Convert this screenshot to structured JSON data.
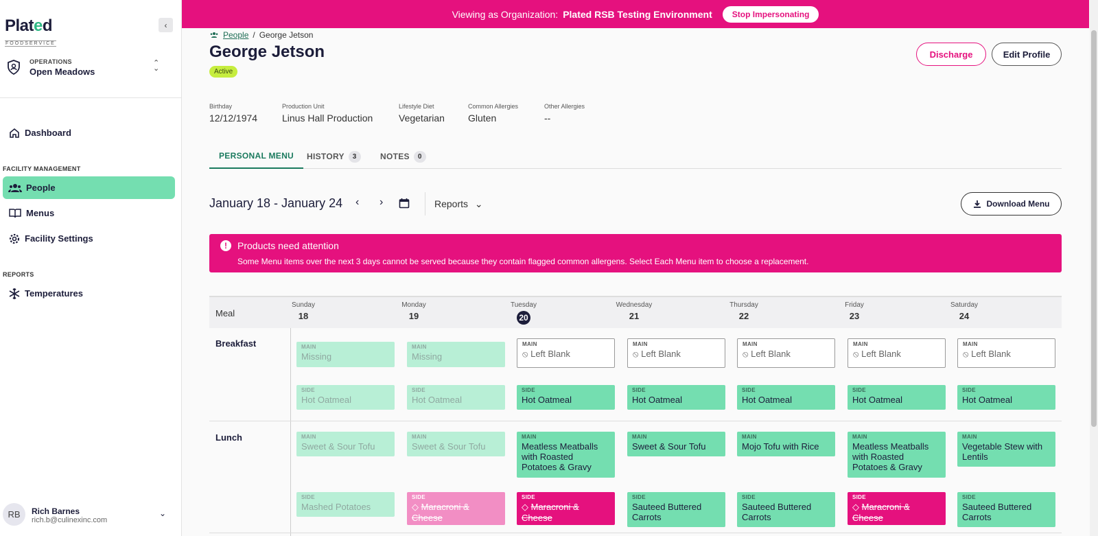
{
  "brand": {
    "logo_main": "Plat",
    "logo_o": "e",
    "logo_end": "d",
    "logo_sub": "FOODSERVICE"
  },
  "org": {
    "label": "OPERATIONS",
    "name": "Open Meadows"
  },
  "nav": {
    "dashboard": "Dashboard",
    "facility_section": "FACILITY MANAGEMENT",
    "people": "People",
    "menus": "Menus",
    "facility_settings": "Facility Settings",
    "reports_section": "REPORTS",
    "temperatures": "Temperatures"
  },
  "user": {
    "initials": "RB",
    "name": "Rich Barnes",
    "email": "rich.b@culinexinc.com"
  },
  "banner": {
    "prefix": "Viewing as Organization:",
    "org": "Plated RSB Testing Environment",
    "stop": "Stop Impersonating"
  },
  "breadcrumb": {
    "parent": "People",
    "sep": "/",
    "current": "George Jetson"
  },
  "profile": {
    "name": "George Jetson",
    "status": "Active",
    "discharge": "Discharge",
    "edit": "Edit Profile"
  },
  "fields": [
    {
      "label": "Birthday",
      "value": "12/12/1974"
    },
    {
      "label": "Production Unit",
      "value": "Linus Hall Production"
    },
    {
      "label": "Lifestyle Diet",
      "value": "Vegetarian"
    },
    {
      "label": "Common Allergies",
      "value": "Gluten"
    },
    {
      "label": "Other Allergies",
      "value": "--"
    }
  ],
  "tabs": {
    "personal": "PERSONAL MENU",
    "history": "HISTORY",
    "history_count": "3",
    "notes": "NOTES",
    "notes_count": "0"
  },
  "week": {
    "range": "January 18 - January 24",
    "reports": "Reports",
    "download": "Download Menu"
  },
  "alert": {
    "title": "Products need attention",
    "message": "Some Menu items over the next 3 days cannot be served because they contain flagged common allergens. Select Each Menu item to choose a replacement."
  },
  "grid": {
    "meal_header": "Meal",
    "days": [
      {
        "name": "Sunday",
        "num": "18"
      },
      {
        "name": "Monday",
        "num": "19"
      },
      {
        "name": "Tuesday",
        "num": "20"
      },
      {
        "name": "Wednesday",
        "num": "21"
      },
      {
        "name": "Thursday",
        "num": "22"
      },
      {
        "name": "Friday",
        "num": "23"
      },
      {
        "name": "Saturday",
        "num": "24"
      }
    ],
    "breakfast": "Breakfast",
    "lunch": "Lunch",
    "main_label": "MAIN",
    "side_label": "SIDE",
    "breakfast_main": [
      "Missing",
      "Missing",
      "Left Blank",
      "Left Blank",
      "Left Blank",
      "Left Blank",
      "Left Blank"
    ],
    "breakfast_side": [
      "Hot Oatmeal",
      "Hot Oatmeal",
      "Hot Oatmeal",
      "Hot Oatmeal",
      "Hot Oatmeal",
      "Hot Oatmeal",
      "Hot Oatmeal"
    ],
    "lunch_main": [
      "Sweet & Sour Tofu",
      "Sweet & Sour Tofu",
      "Meatless Meatballs with Roasted Potatoes & Gravy",
      "Sweet & Sour Tofu",
      "Mojo Tofu with Rice",
      "Meatless Meatballs with Roasted Potatoes & Gravy",
      "Vegetable Stew with Lentils"
    ],
    "lunch_side": [
      "Mashed Potatoes",
      "Maracroni & Cheese",
      "Maracroni & Cheese",
      "Sauteed Buttered Carrots",
      "Sauteed Buttered Carrots",
      "Maracroni & Cheese",
      "Sauteed Buttered Carrots"
    ]
  }
}
